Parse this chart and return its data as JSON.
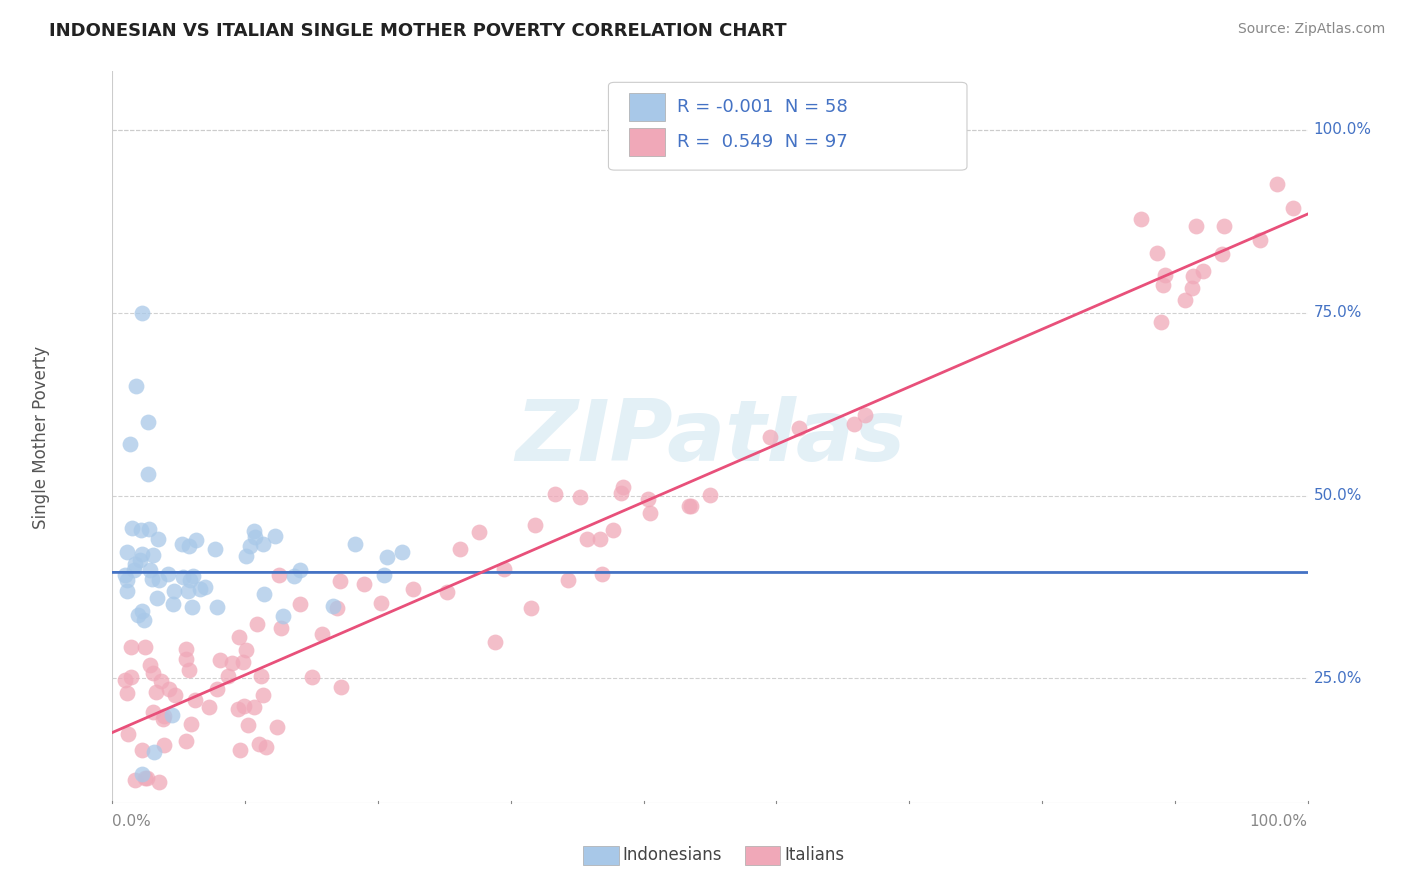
{
  "title": "INDONESIAN VS ITALIAN SINGLE MOTHER POVERTY CORRELATION CHART",
  "source": "Source: ZipAtlas.com",
  "ylabel": "Single Mother Poverty",
  "legend_label1": "Indonesians",
  "legend_label2": "Italians",
  "r1": "-0.001",
  "n1": "58",
  "r2": "0.549",
  "n2": "97",
  "color_indonesian": "#a8c8e8",
  "color_italian": "#f0a8b8",
  "line_color_indonesian": "#4472c4",
  "line_color_italian": "#e8507a",
  "watermark": "ZIPatlas",
  "background_color": "#ffffff",
  "grid_color": "#cccccc",
  "title_color": "#222222",
  "source_color": "#888888",
  "ytick_color": "#4472c4",
  "xtick_color": "#888888",
  "ylabel_color": "#555555"
}
